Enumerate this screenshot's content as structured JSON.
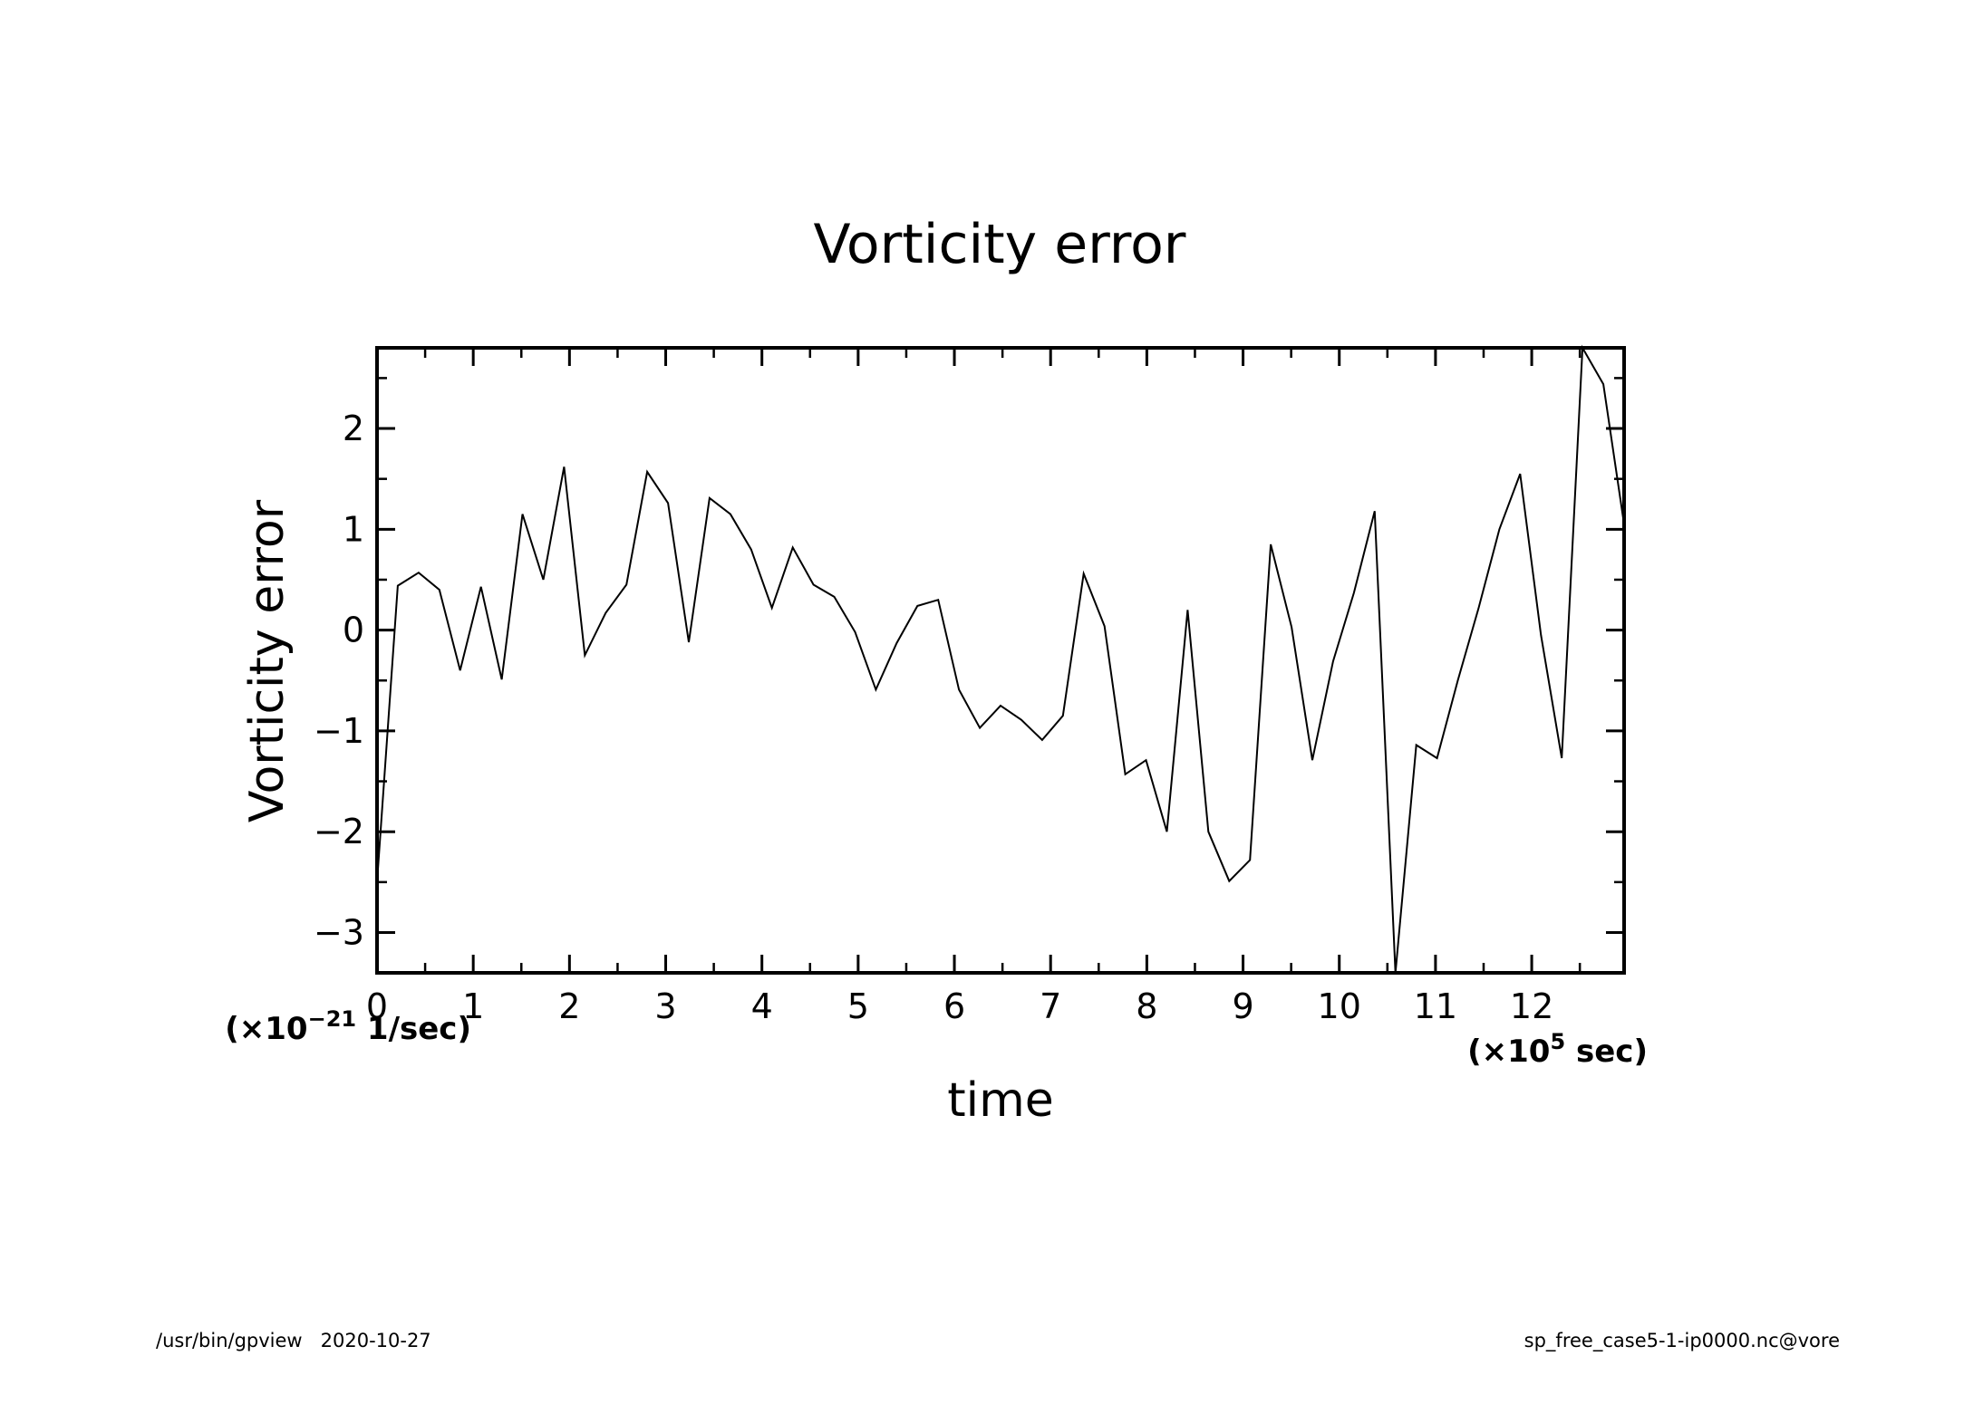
{
  "chart_data": {
    "type": "line",
    "title": "Vorticity error",
    "xlabel": "time",
    "ylabel": "Vorticity error",
    "x_scale_label": {
      "prefix": "(×10",
      "exponent": "5",
      "suffix": " sec)"
    },
    "y_scale_label": {
      "prefix": "(×10",
      "exponent": "−21",
      "suffix": " 1/sec)"
    },
    "xlim": [
      0,
      12.96
    ],
    "ylim": [
      -3.4,
      2.8
    ],
    "xticks": [
      0,
      1,
      2,
      3,
      4,
      5,
      6,
      7,
      8,
      9,
      10,
      11,
      12
    ],
    "xtick_labels": [
      "0",
      "1",
      "2",
      "3",
      "4",
      "5",
      "6",
      "7",
      "8",
      "9",
      "10",
      "11",
      "12"
    ],
    "yticks": [
      -3,
      -2,
      -1,
      0,
      1,
      2
    ],
    "ytick_labels": [
      "−3",
      "−2",
      "−1",
      "0",
      "1",
      "2"
    ],
    "grid": false,
    "series": [
      {
        "x": [
          0,
          0.216,
          0.432,
          0.648,
          0.864,
          1.08,
          1.296,
          1.512,
          1.728,
          1.944,
          2.16,
          2.376,
          2.592,
          2.808,
          3.024,
          3.24,
          3.456,
          3.672,
          3.888,
          4.104,
          4.32,
          4.536,
          4.752,
          4.968,
          5.184,
          5.4,
          5.616,
          5.832,
          6.048,
          6.264,
          6.48,
          6.696,
          6.912,
          7.128,
          7.344,
          7.56,
          7.776,
          7.992,
          8.208,
          8.424,
          8.64,
          8.856,
          9.072,
          9.288,
          9.504,
          9.72,
          9.936,
          10.152,
          10.368,
          10.584,
          10.8,
          11.016,
          11.232,
          11.448,
          11.664,
          11.88,
          12.096,
          12.312,
          12.528,
          12.744,
          12.96
        ],
        "values": [
          -2.5,
          0.44,
          0.57,
          0.4,
          -0.4,
          0.43,
          -0.49,
          1.15,
          0.5,
          1.62,
          -0.25,
          0.17,
          0.45,
          1.57,
          1.26,
          -0.12,
          1.31,
          1.15,
          0.8,
          0.22,
          0.82,
          0.45,
          0.33,
          -0.02,
          -0.59,
          -0.13,
          0.24,
          0.3,
          -0.59,
          -0.97,
          -0.75,
          -0.89,
          -1.09,
          -0.85,
          0.56,
          0.04,
          -1.43,
          -1.29,
          -2.0,
          0.2,
          -2.0,
          -2.49,
          -2.28,
          0.85,
          0.03,
          -1.29,
          -0.31,
          0.37,
          1.18,
          -3.4,
          -1.14,
          -1.27,
          -0.5,
          0.22,
          1.0,
          1.55,
          -0.05,
          -1.27,
          2.8,
          2.44,
          1.05
        ]
      }
    ]
  },
  "footer": {
    "left": "/usr/bin/gpview   2020-10-27",
    "right": "sp_free_case5-1-ip0000.nc@vore"
  }
}
